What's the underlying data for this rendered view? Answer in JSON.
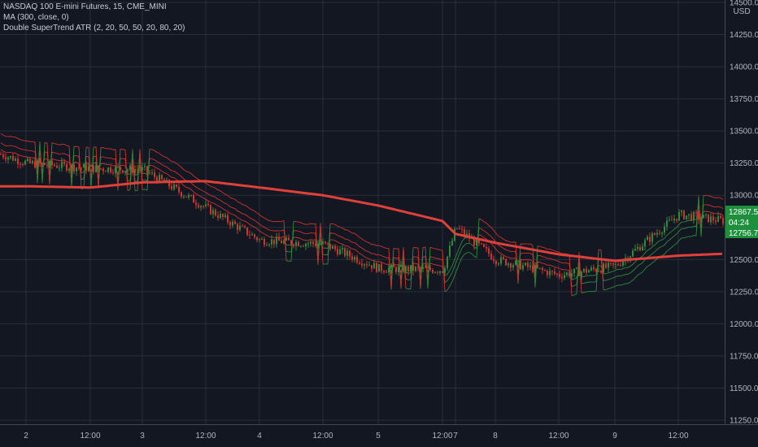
{
  "legend": {
    "symbol": "NASDAQ 100 E-mini Futures, 15, CME_MINI",
    "ma": "MA (300, close, 0)",
    "indicator": "Double SuperTrend ATR (2, 20, 50, 50, 20, 80, 20)"
  },
  "colors": {
    "background": "#131722",
    "grid": "#2a2e39",
    "axis_text": "#b2b5be",
    "ma_line": "#e0403a",
    "candle_up": "#2e8b3a",
    "candle_down": "#d0322c",
    "price_box": "#1e8f3c",
    "price_box_text": "#ffffff"
  },
  "price_axis": {
    "currency": "USD",
    "ticks": [
      "14500.00",
      "14250.00",
      "14000.00",
      "13750.00",
      "13500.00",
      "13250.00",
      "13000.00",
      "12750.00",
      "12500.00",
      "12250.00",
      "12000.00",
      "11750.00",
      "11500.00",
      "11250.00"
    ],
    "tick_values": [
      14500,
      14250,
      14000,
      13750,
      13500,
      13250,
      13000,
      12750,
      12500,
      12250,
      12000,
      11750,
      11500,
      11250
    ],
    "last_high_label": "12867.50",
    "countdown": "04:24",
    "last_low_label": "12756.75"
  },
  "time_axis": {
    "labels": [
      "2",
      "12:00",
      "3",
      "12:00",
      "4",
      "12:00",
      "5",
      "12:00",
      "7",
      "8",
      "12:00",
      "9",
      "12:00"
    ]
  },
  "chart_data": {
    "type": "line",
    "title": "NASDAQ 100 E-mini Futures, 15, CME_MINI",
    "xlabel": "",
    "ylabel": "",
    "ylim": [
      11250,
      14500
    ],
    "grid": true,
    "legend_position": "top-left",
    "x": [
      "2",
      "12:00",
      "3",
      "12:00",
      "4",
      "12:00",
      "5",
      "12:00",
      "7",
      "8",
      "12:00",
      "9",
      "12:00"
    ],
    "series": [
      {
        "name": "NASDAQ 100 E-mini Futures, 15, CME_MINI",
        "values": [
          13250,
          13210,
          13200,
          12900,
          12650,
          12620,
          12430,
          12420,
          12750,
          12500,
          12380,
          12450,
          12850
        ],
        "last": [
          12867.5,
          12756.75
        ]
      },
      {
        "name": "MA (300, close, 0)",
        "values": [
          13070,
          13060,
          13100,
          13110,
          13060,
          13000,
          12920,
          12800,
          12700,
          12630,
          12540,
          12490,
          12530
        ]
      }
    ],
    "annotations": [
      "Double SuperTrend ATR (2, 20, 50, 50, 20, 80, 20)"
    ]
  }
}
